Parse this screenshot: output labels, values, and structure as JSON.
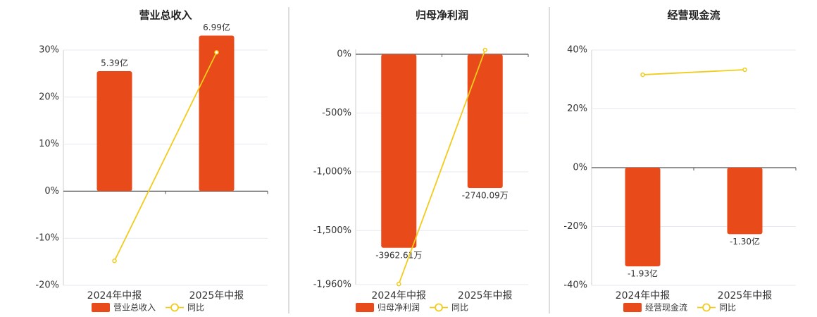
{
  "chart_data": [
    {
      "type": "bar",
      "title": "营业总收入",
      "categories": [
        "2024年中报",
        "2025年中报"
      ],
      "series": [
        {
          "name": "营业总收入",
          "color": "#e84a1a",
          "values": [
            5.39,
            6.99
          ],
          "value_labels": [
            "5.39亿",
            "6.99亿"
          ],
          "axis": "y2"
        },
        {
          "name": "同比",
          "type": "line",
          "color": "#f2cb1c",
          "values": [
            -14.8,
            29.5
          ]
        }
      ],
      "ylim": [
        -20,
        30
      ],
      "yticks": [
        {
          "value": 30,
          "label": "30%"
        },
        {
          "value": 20,
          "label": "20%"
        },
        {
          "value": 10,
          "label": "10%"
        },
        {
          "value": 0,
          "label": "0%"
        },
        {
          "value": -10,
          "label": "-10%"
        },
        {
          "value": -20,
          "label": "-20%"
        }
      ],
      "y2lim": [
        -4.23,
        6.34
      ],
      "grid": true
    },
    {
      "type": "bar",
      "title": "归母净利润",
      "categories": [
        "2024年中报",
        "2025年中报"
      ],
      "series": [
        {
          "name": "归母净利润",
          "color": "#e84a1a",
          "values": [
            -3962.61,
            -2740.09
          ],
          "value_labels": [
            "-3962.61万",
            "-2740.09万"
          ],
          "axis": "y2"
        },
        {
          "name": "同比",
          "type": "line",
          "color": "#f2cb1c",
          "values": [
            -1955,
            36
          ]
        }
      ],
      "ylim": [
        -1960,
        42
      ],
      "yticks": [
        {
          "value": 0,
          "label": "0%"
        },
        {
          "value": -500,
          "label": "-500%"
        },
        {
          "value": -1000,
          "label": "-1,000%"
        },
        {
          "value": -1500,
          "label": "-1,500%"
        },
        {
          "value": -1960,
          "label": "-1,960%"
        }
      ],
      "y2lim": [
        -4716,
        101
      ],
      "grid": true
    },
    {
      "type": "bar",
      "title": "经营现金流",
      "categories": [
        "2024年中报",
        "2025年中报"
      ],
      "series": [
        {
          "name": "经营现金流",
          "color": "#e84a1a",
          "values": [
            -1.93,
            -1.3
          ],
          "value_labels": [
            "-1.93亿",
            "-1.30亿"
          ],
          "axis": "y2"
        },
        {
          "name": "同比",
          "type": "line",
          "color": "#f2cb1c",
          "values": [
            31.6,
            33.3
          ]
        }
      ],
      "ylim": [
        -40,
        40
      ],
      "yticks": [
        {
          "value": 40,
          "label": "40%"
        },
        {
          "value": 20,
          "label": "20%"
        },
        {
          "value": 0,
          "label": "0%"
        },
        {
          "value": -20,
          "label": "-20%"
        },
        {
          "value": -40,
          "label": "-40%"
        }
      ],
      "y2lim": [
        -2.3,
        2.3
      ],
      "grid": true
    }
  ]
}
